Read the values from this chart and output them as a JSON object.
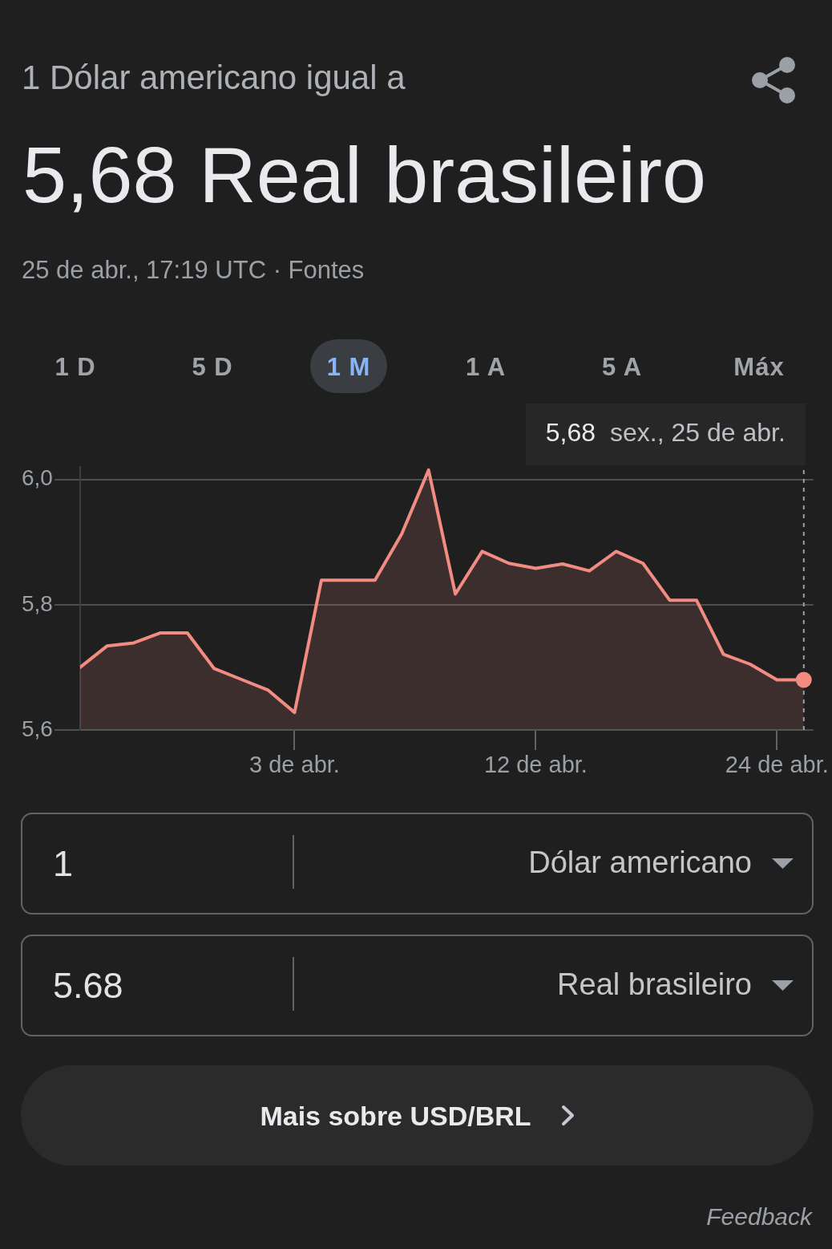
{
  "chart_data": {
    "type": "area",
    "title": "1 Dólar americano igual a",
    "subtitle": "5,68 Real brasileiro",
    "categories": [
      null,
      null,
      null,
      null,
      null,
      null,
      null,
      null,
      "3 de abr.",
      null,
      null,
      null,
      null,
      null,
      null,
      null,
      null,
      "12 de abr.",
      null,
      null,
      null,
      null,
      null,
      null,
      null,
      null,
      "24 de abr.",
      null
    ],
    "values": [
      5.7,
      5.734,
      5.739,
      5.755,
      5.755,
      5.698,
      5.681,
      5.664,
      5.628,
      5.839,
      5.839,
      5.839,
      5.913,
      6.015,
      5.817,
      5.885,
      5.866,
      5.858,
      5.865,
      5.854,
      5.885,
      5.866,
      5.807,
      5.807,
      5.721,
      5.705,
      5.68,
      5.68
    ],
    "color": "#f28b82",
    "ylim": [
      5.6,
      6.02
    ],
    "yticks": [
      {
        "value": 5.6,
        "label": "5,6"
      },
      {
        "value": 5.8,
        "label": "5,8"
      },
      {
        "value": 6.0,
        "label": "6,0"
      }
    ],
    "grid": "y",
    "marker": "none",
    "annotations": [
      "25 de abr., 17:19 UTC · Fontes",
      "1 D",
      "5 D",
      "1 M",
      "1 A",
      "5 A",
      "Máx",
      "5,68 sex., 25 de abr.",
      "1",
      "Dólar americano",
      "5.68",
      "Real brasileiro",
      "Mais sobre USD/BRL",
      "Feedback"
    ]
  }
}
